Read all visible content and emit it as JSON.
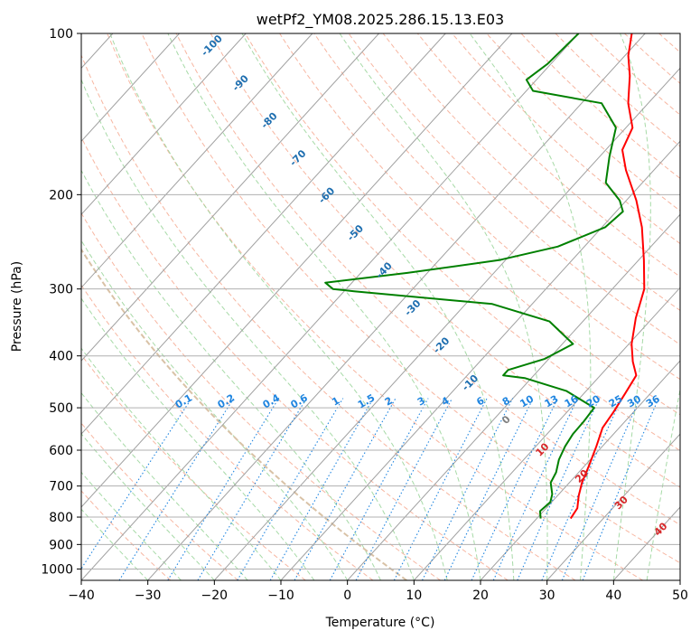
{
  "chart_data": {
    "type": "line",
    "title": "wetPf2_YM08.2025.286.15.13.E03",
    "xlabel": "Temperature (°C)",
    "ylabel": "Pressure (hPa)",
    "xlim": [
      -40,
      50
    ],
    "ylim": [
      1050,
      100
    ],
    "y_scale": "log",
    "skew": "skew-T log-p",
    "grid": true,
    "x_ticks": [
      -40,
      -30,
      -20,
      -10,
      0,
      10,
      20,
      30,
      40,
      50
    ],
    "y_ticks": [
      100,
      200,
      300,
      400,
      500,
      600,
      700,
      800,
      900,
      1000
    ],
    "series": [
      {
        "color": "#ff0000",
        "points": [
          [
            25.1,
            805
          ],
          [
            24.7,
            770
          ],
          [
            23.2,
            730
          ],
          [
            21.9,
            690
          ],
          [
            20.6,
            640
          ],
          [
            19.1,
            590
          ],
          [
            17.5,
            545
          ],
          [
            17.0,
            510
          ],
          [
            16.2,
            470
          ],
          [
            15.4,
            435
          ],
          [
            13.0,
            410
          ],
          [
            10.4,
            380
          ],
          [
            7.5,
            340
          ],
          [
            4.8,
            300
          ],
          [
            0.8,
            265
          ],
          [
            -4.0,
            230
          ],
          [
            -8.5,
            205
          ],
          [
            -14.2,
            180
          ],
          [
            -17.5,
            165
          ],
          [
            -19.0,
            150
          ],
          [
            -23.0,
            135
          ],
          [
            -26.5,
            120
          ],
          [
            -29.5,
            110
          ],
          [
            -32.0,
            100
          ]
        ]
      },
      {
        "color": "#008000",
        "points": [
          [
            20.6,
            805
          ],
          [
            19.5,
            780
          ],
          [
            19.8,
            750
          ],
          [
            19.0,
            725
          ],
          [
            17.2,
            690
          ],
          [
            16.6,
            660
          ],
          [
            15.3,
            625
          ],
          [
            14.4,
            590
          ],
          [
            13.9,
            560
          ],
          [
            13.8,
            530
          ],
          [
            13.5,
            500
          ],
          [
            7.0,
            465
          ],
          [
            -1.0,
            440
          ],
          [
            -4.6,
            435
          ],
          [
            -4.6,
            425
          ],
          [
            -0.6,
            405
          ],
          [
            1.6,
            380
          ],
          [
            -5.0,
            345
          ],
          [
            -16.0,
            320
          ],
          [
            -38.5,
            303
          ],
          [
            -42.0,
            300
          ],
          [
            -44.0,
            292
          ],
          [
            -33.0,
            280
          ],
          [
            -21.0,
            265
          ],
          [
            -14.0,
            250
          ],
          [
            -9.5,
            230
          ],
          [
            -9.0,
            215
          ],
          [
            -11.0,
            205
          ],
          [
            -15.5,
            190
          ],
          [
            -18.5,
            170
          ],
          [
            -21.5,
            150
          ],
          [
            -27.0,
            135
          ],
          [
            -39.0,
            128
          ],
          [
            -41.5,
            122
          ],
          [
            -40.5,
            114
          ],
          [
            -40.0,
            100
          ]
        ]
      }
    ],
    "isohume_labels": [
      "0.1",
      "0.2",
      "0.4",
      "0.6",
      "1",
      "1.5",
      "2",
      "3",
      "4",
      "6",
      "8",
      "10",
      "13",
      "16",
      "20",
      "25",
      "30",
      "36"
    ],
    "wet_adiabat_labels": [
      "-100",
      "-90",
      "-80",
      "-70",
      "-60",
      "-50",
      "-40",
      "-30",
      "-20",
      "-10",
      "0",
      "10",
      "20",
      "30",
      "40"
    ],
    "colors": {
      "mixing_ratio": "#1f85e0",
      "moist_adiabat_label": "#1f6fb0",
      "moist_adiabat_warm": "#d62728",
      "zero_label": "#808080",
      "dry_adiabat": "#f5a48a",
      "moist_adiabat": "#9dd69d",
      "isotherm": "#a0a0a0",
      "special_adiabat": "#d9c2a6"
    }
  }
}
